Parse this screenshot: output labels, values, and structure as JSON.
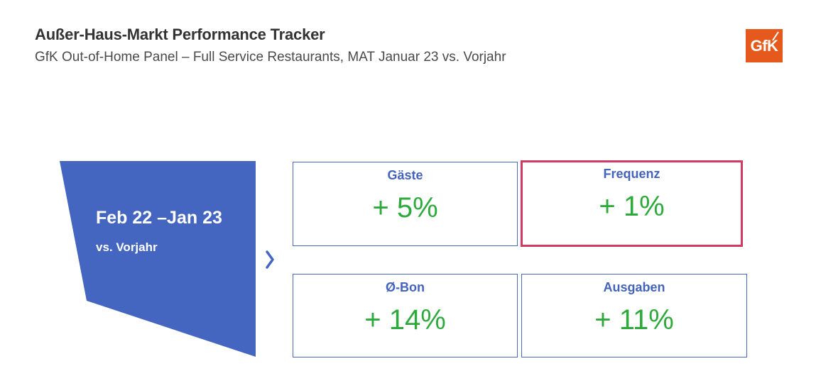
{
  "header": {
    "title": "Außer-Haus-Markt Performance Tracker",
    "subtitle": "GfK Out-of-Home Panel – Full Service Restaurants, MAT Januar 23 vs. Vorjahr"
  },
  "logo": {
    "text": "GfK",
    "color": "#e55a1c"
  },
  "period": {
    "main": "Feb 22 –Jan 23",
    "sub": "vs. Vorjahr",
    "color": "#4466c0"
  },
  "arrow_icon": "chevron-right-icon",
  "metrics": [
    {
      "label": "Gäste",
      "value": "+ 5%"
    },
    {
      "label": "Frequenz",
      "value": "+ 1%",
      "highlighted": true
    },
    {
      "label": "Ø-Bon",
      "value": "+ 14%"
    },
    {
      "label": "Ausgaben",
      "value": "+ 11%"
    }
  ],
  "colors": {
    "label": "#4363bd",
    "value": "#2eaa3c",
    "border": "#4a68bd",
    "highlight_border": "#d03a64"
  }
}
